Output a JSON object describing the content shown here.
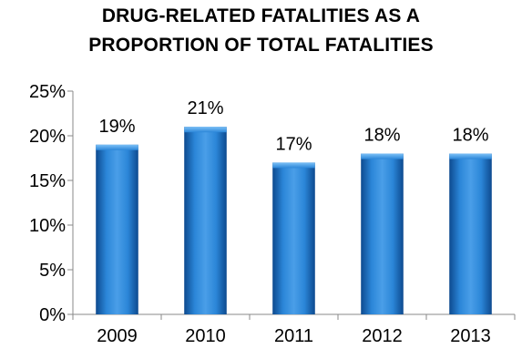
{
  "chart_data": {
    "type": "bar",
    "title_lines": [
      "DRUG-RELATED FATALITIES AS A",
      "PROPORTION OF TOTAL FATALITIES"
    ],
    "categories": [
      "2009",
      "2010",
      "2011",
      "2012",
      "2013"
    ],
    "values": [
      19,
      21,
      17,
      18,
      18
    ],
    "data_labels": [
      "19%",
      "21%",
      "17%",
      "18%",
      "18%"
    ],
    "yticks": [
      "0%",
      "5%",
      "10%",
      "15%",
      "20%",
      "25%"
    ],
    "ylim": [
      0,
      25
    ],
    "xlabel": "",
    "ylabel": "",
    "grid": false,
    "legend": "none",
    "bar_color": "#1f6fc4",
    "bar_highlight": "#5aa8f0",
    "bar_shadow": "#0f4f96"
  }
}
